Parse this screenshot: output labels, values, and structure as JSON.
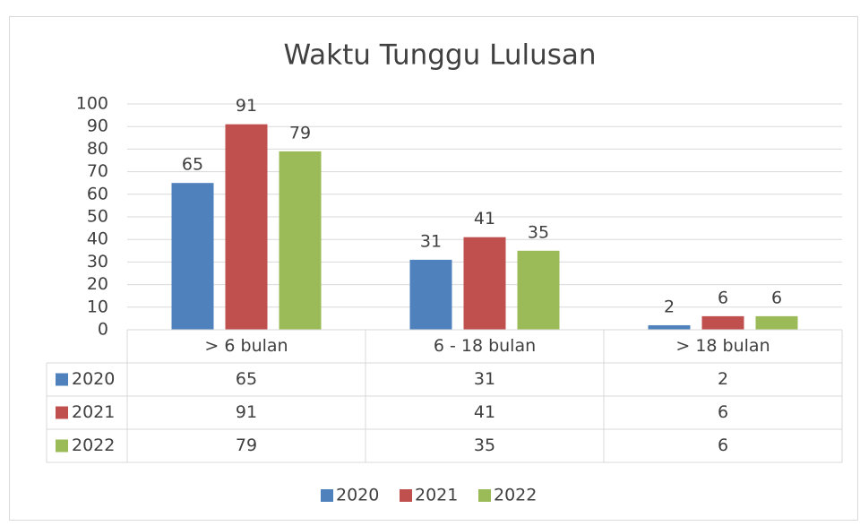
{
  "chart_data": {
    "type": "bar",
    "title": "Waktu Tunggu Lulusan",
    "categories": [
      "> 6 bulan",
      "6 - 18 bulan",
      "> 18 bulan"
    ],
    "series": [
      {
        "name": "2020",
        "color": "#4f81bd",
        "values": [
          65,
          31,
          2
        ]
      },
      {
        "name": "2021",
        "color": "#c0504d",
        "values": [
          91,
          41,
          6
        ]
      },
      {
        "name": "2022",
        "color": "#9bbb59",
        "values": [
          79,
          35,
          6
        ]
      }
    ],
    "ylim": [
      0,
      100
    ],
    "yticks": [
      0,
      10,
      20,
      30,
      40,
      50,
      60,
      70,
      80,
      90,
      100
    ],
    "grid": true,
    "data_table": true,
    "legend": "bottom"
  }
}
